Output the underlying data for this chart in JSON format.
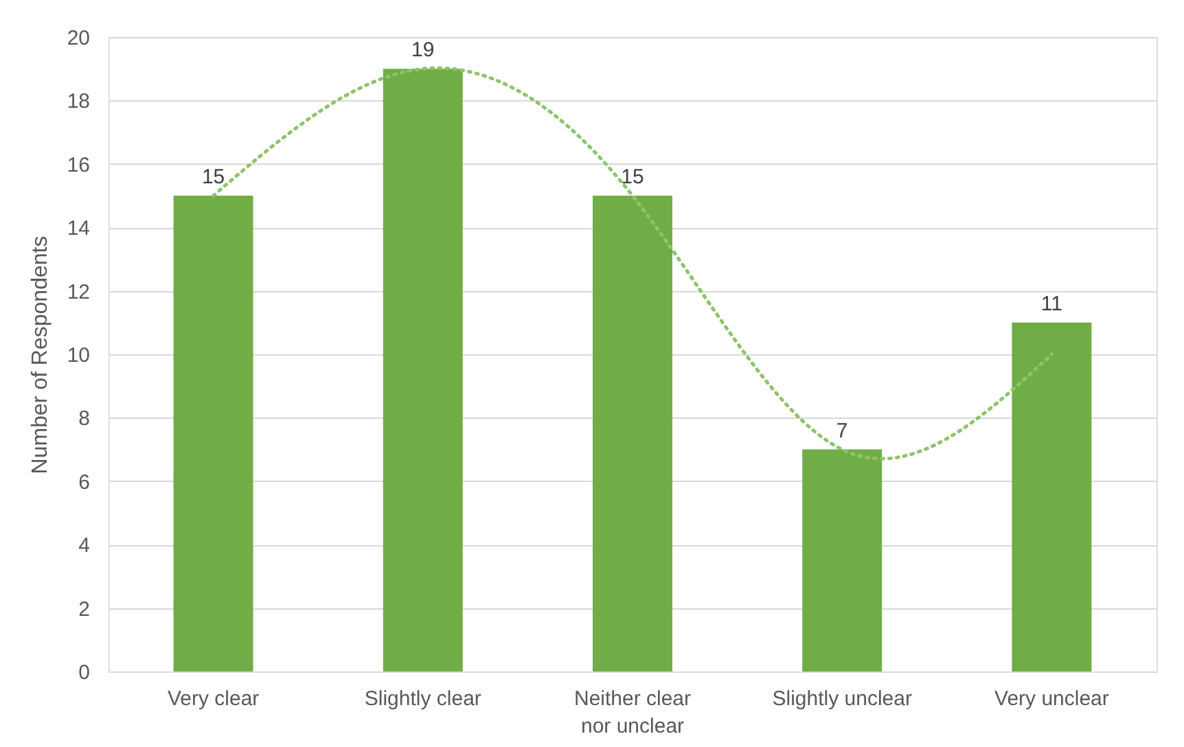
{
  "chart_data": {
    "type": "bar",
    "ylabel": "Number of Respondents",
    "categories": [
      "Very clear",
      "Slightly clear",
      "Neither clear nor unclear",
      "Slightly unclear",
      "Very unclear"
    ],
    "series": [
      {
        "color": "#70ad47",
        "values": [
          15,
          19,
          15,
          7,
          11
        ],
        "value_labels": [
          "15",
          "19",
          "15",
          "7",
          "11"
        ]
      },
      {
        "type": "line",
        "color": "#8fc46a",
        "line_style": "dotted",
        "values": [
          15,
          19,
          15,
          7,
          10
        ]
      }
    ],
    "ylim": [
      0,
      20
    ],
    "yticks": [
      0,
      2,
      4,
      6,
      8,
      10,
      12,
      14,
      16,
      18,
      20
    ],
    "grid": "y"
  }
}
